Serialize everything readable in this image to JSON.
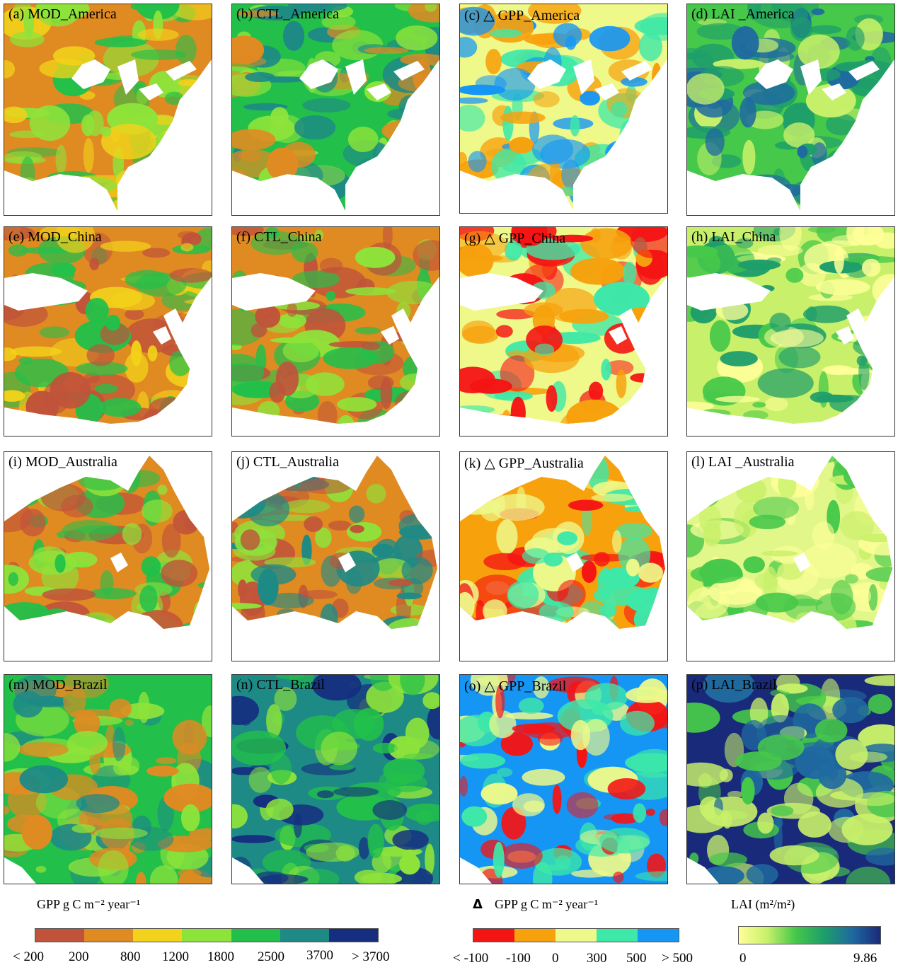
{
  "panels": [
    {
      "label": "(a) MOD_America",
      "region": "America"
    },
    {
      "label": "(b) CTL_America",
      "region": "America"
    },
    {
      "label": "(c) △ GPP_America",
      "region": "America"
    },
    {
      "label": "(d) LAI _America",
      "region": "America"
    },
    {
      "label": "(e) MOD_China",
      "region": "China"
    },
    {
      "label": "(f) CTL_China",
      "region": "China"
    },
    {
      "label": "(g) △ GPP_China",
      "region": "China"
    },
    {
      "label": "(h) LAI_China",
      "region": "China"
    },
    {
      "label": "(i) MOD_Australia",
      "region": "Australia"
    },
    {
      "label": "(j) CTL_Australia",
      "region": "Australia"
    },
    {
      "label": "(k) △ GPP_Australia",
      "region": "Australia"
    },
    {
      "label": "(l) LAI _Australia",
      "region": "Australia"
    },
    {
      "label": "(m) MOD_Brazil",
      "region": "Brazil"
    },
    {
      "label": "(n) CTL_Brazil",
      "region": "Brazil"
    },
    {
      "label": "(o) △ GPP_Brazil",
      "region": "Brazil"
    },
    {
      "label": "(p) LAI_Brazil",
      "region": "Brazil"
    }
  ],
  "legends": {
    "gpp": {
      "title": "GPP g C m⁻² year⁻¹",
      "colors": [
        "#c0533a",
        "#e08a22",
        "#f2d21a",
        "#8ee33a",
        "#22c04a",
        "#1e8a86",
        "#152e80"
      ],
      "ticks": [
        "< 200",
        "200",
        "800",
        "1200",
        "1800",
        "2500",
        "3700",
        "> 3700"
      ]
    },
    "delta": {
      "title": "GPP g C m⁻² year⁻¹",
      "symbol": "Δ",
      "colors": [
        "#f51414",
        "#f7a10d",
        "#eef98a",
        "#3de8a8",
        "#1596f5"
      ],
      "ticks": [
        "< -100",
        "-100",
        "0",
        "300",
        "500",
        "> 500"
      ]
    },
    "lai": {
      "title": "LAI (m²/m²)",
      "min": "0",
      "max": "9.86",
      "colors": [
        "#ffff99",
        "#c8f06a",
        "#46c84a",
        "#1e9e6a",
        "#1f6aa0",
        "#1a2a7a"
      ]
    }
  },
  "palettes": {
    "MOD": {
      "America": [
        "#e08a22",
        "#8ee33a",
        "#f2d21a",
        "#22c04a"
      ],
      "China": [
        "#e08a22",
        "#c0533a",
        "#f2d21a",
        "#22c04a"
      ],
      "Australia": [
        "#e08a22",
        "#c0533a",
        "#8ee33a",
        "#22c04a"
      ],
      "Brazil": [
        "#22c04a",
        "#8ee33a",
        "#1e8a86",
        "#e08a22"
      ]
    },
    "CTL": {
      "America": [
        "#22c04a",
        "#e08a22",
        "#1e8a86",
        "#8ee33a"
      ],
      "China": [
        "#e08a22",
        "#c0533a",
        "#8ee33a",
        "#22c04a"
      ],
      "Australia": [
        "#e08a22",
        "#c0533a",
        "#8ee33a",
        "#1e8a86"
      ],
      "Brazil": [
        "#1e8a86",
        "#22c04a",
        "#8ee33a",
        "#152e80"
      ]
    },
    "DELTA": {
      "America": [
        "#eef98a",
        "#3de8a8",
        "#1596f5",
        "#f7a10d"
      ],
      "China": [
        "#eef98a",
        "#3de8a8",
        "#f7a10d",
        "#f51414"
      ],
      "Australia": [
        "#f7a10d",
        "#f51414",
        "#eef98a",
        "#3de8a8"
      ],
      "Brazil": [
        "#1596f5",
        "#eef98a",
        "#3de8a8",
        "#f51414"
      ]
    },
    "LAI": {
      "America": [
        "#46c84a",
        "#1e9e6a",
        "#c8f06a",
        "#1f6aa0"
      ],
      "China": [
        "#c8f06a",
        "#ffff99",
        "#46c84a",
        "#1e9e6a"
      ],
      "Australia": [
        "#e2f78a",
        "#ffff99",
        "#c8f06a",
        "#46c84a"
      ],
      "Brazil": [
        "#1a2a7a",
        "#1f6aa0",
        "#46c84a",
        "#c8f06a"
      ]
    }
  }
}
